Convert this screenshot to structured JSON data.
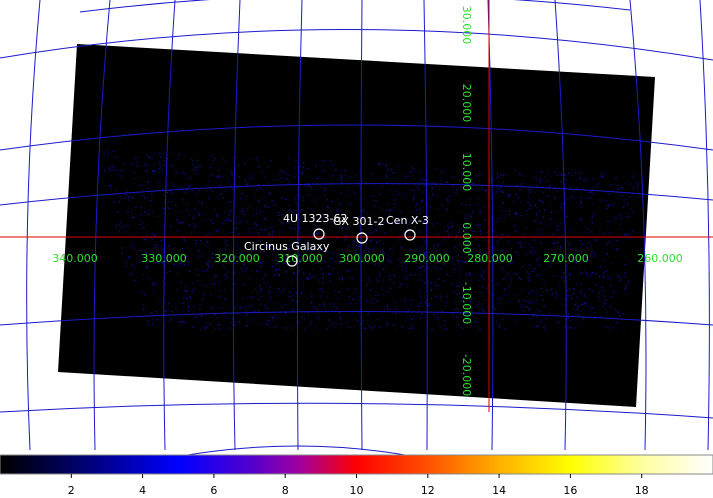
{
  "sky_map": {
    "longitude_labels": [
      "340.000",
      "330.000",
      "320.000",
      "310.000",
      "300.000",
      "290.000",
      "280.000",
      "270.000",
      "260.000"
    ],
    "latitude_labels": [
      "30.000",
      "20.000",
      "10.000",
      "0.000",
      "-10.000",
      "-20.000"
    ],
    "sources": [
      {
        "name": "4U 1323-62"
      },
      {
        "name": "GX 301-2"
      },
      {
        "name": "Cen X-3"
      },
      {
        "name": "Circinus Galaxy"
      }
    ]
  },
  "colorbar": {
    "range": [
      0,
      20
    ],
    "ticks": [
      2,
      4,
      6,
      8,
      10,
      12,
      14,
      16,
      18
    ]
  }
}
